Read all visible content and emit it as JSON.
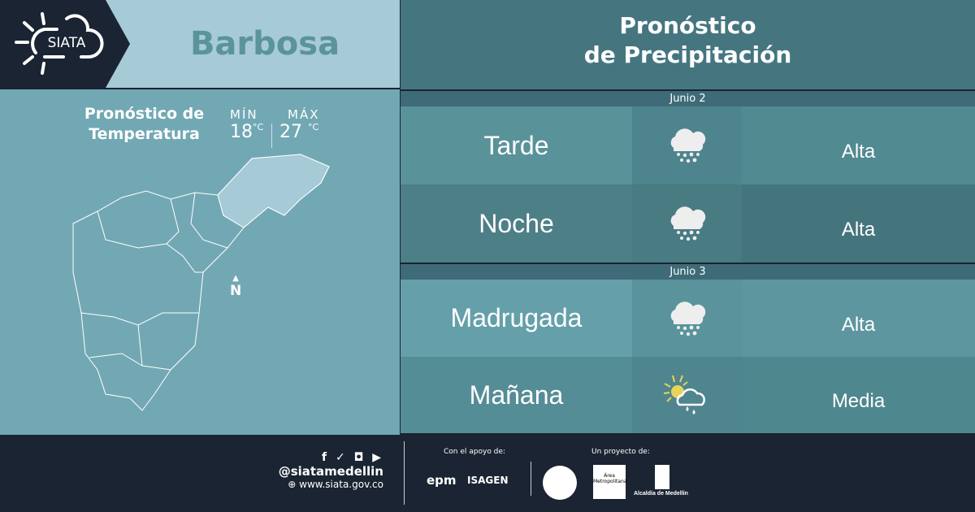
{
  "brand": {
    "logo_text": "SIATA"
  },
  "header": {
    "city": "Barbosa",
    "title_line1": "Pronóstico",
    "title_line2": "de Precipitación"
  },
  "temperature": {
    "title_line1": "Pronóstico de",
    "title_line2": "Temperatura",
    "min_label": "MÍN",
    "max_label": "MÁX",
    "min": "18",
    "max": "27",
    "unit": "°C"
  },
  "map": {
    "north_label": "N"
  },
  "forecast": [
    {
      "date": "Junio 2",
      "periods": [
        {
          "period": "Tarde",
          "icon": "heavy-rain-icon",
          "level": "Alta"
        },
        {
          "period": "Noche",
          "icon": "heavy-rain-icon",
          "level": "Alta"
        }
      ]
    },
    {
      "date": "Junio 3",
      "periods": [
        {
          "period": "Madrugada",
          "icon": "heavy-rain-icon",
          "level": "Alta"
        },
        {
          "period": "Mañana",
          "icon": "sun-cloud-rain-icon",
          "level": "Media"
        }
      ]
    }
  ],
  "footer": {
    "handle": "@siatamedellin",
    "website": "www.siata.gov.co",
    "support_label": "Con el apoyo de:",
    "support_logos": [
      "epm",
      "ISAGEN"
    ],
    "project_label": "Un proyecto de:",
    "project_logos": [
      "Área Metropolitana",
      "Alcaldía de Medellín"
    ]
  },
  "colors": {
    "dark": "#1a2432",
    "header_right": "#457680",
    "light": "#a6cad6",
    "sun": "#e8d45a"
  }
}
